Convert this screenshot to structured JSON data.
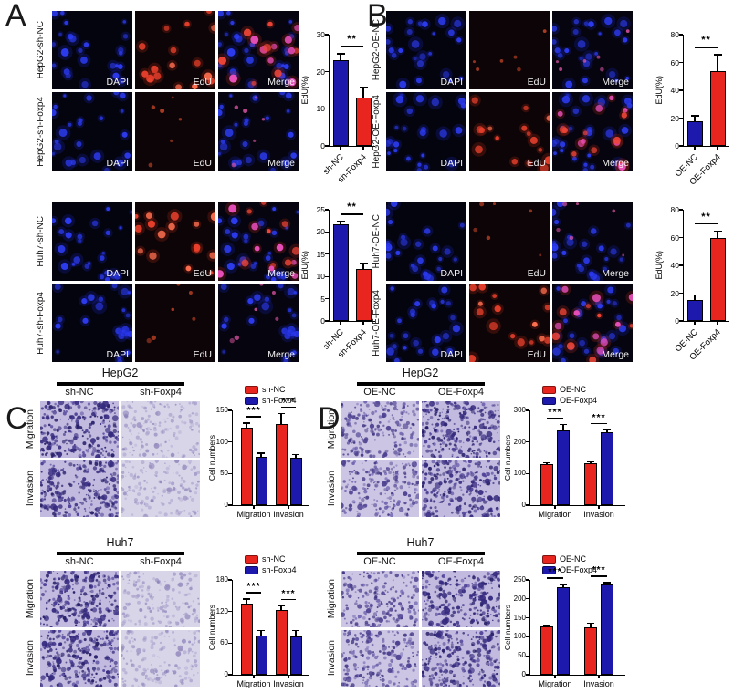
{
  "colors": {
    "navy": "#1c19ac",
    "red": "#e8251f"
  },
  "panels": {
    "A": {
      "letter": "A",
      "channel_labels": [
        "DAPI",
        "EdU",
        "Merge"
      ],
      "rows": [
        {
          "label": "HepG2-sh-NC",
          "edu_signal": "high"
        },
        {
          "label": "HepG2-sh-Foxp4",
          "edu_signal": "low"
        },
        {
          "label": "Huh7-sh-NC",
          "edu_signal": "high"
        },
        {
          "label": "Huh7-sh-Foxp4",
          "edu_signal": "low"
        }
      ]
    },
    "B": {
      "letter": "B",
      "channel_labels": [
        "DAPI",
        "EdU",
        "Merge"
      ],
      "rows": [
        {
          "label": "HepG2-OE-NC",
          "edu_signal": "low"
        },
        {
          "label": "HepG2-OE-Foxp4",
          "edu_signal": "high"
        },
        {
          "label": "Huh7-OE-NC",
          "edu_signal": "low"
        },
        {
          "label": "Huh7-OE-Foxp4",
          "edu_signal": "high"
        }
      ]
    },
    "C": {
      "letter": "C",
      "groups": [
        {
          "title": "HepG2",
          "col_labels": [
            "sh-NC",
            "sh-Foxp4"
          ],
          "row_labels": [
            "Migration",
            "Invasion"
          ],
          "col_density": [
            "dense",
            "sparse"
          ]
        },
        {
          "title": "Huh7",
          "col_labels": [
            "sh-NC",
            "sh-Foxp4"
          ],
          "row_labels": [
            "Migration",
            "Invasion"
          ],
          "col_density": [
            "dense",
            "sparse"
          ]
        }
      ]
    },
    "D": {
      "letter": "D",
      "groups": [
        {
          "title": "HepG2",
          "col_labels": [
            "OE-NC",
            "OE-Foxp4"
          ],
          "row_labels": [
            "Migration",
            "Invasion"
          ],
          "col_density": [
            "medium",
            "dense"
          ]
        },
        {
          "title": "Huh7",
          "col_labels": [
            "OE-NC",
            "OE-Foxp4"
          ],
          "row_labels": [
            "Migration",
            "Invasion"
          ],
          "col_density": [
            "medium",
            "dense"
          ]
        }
      ]
    }
  },
  "chart_data": [
    {
      "id": "A-HepG2-EdU",
      "type": "bar",
      "cell_line": "HepG2",
      "ylabel": "EdU(%)",
      "categories": [
        "sh-NC",
        "sh-Foxp4"
      ],
      "values": [
        23,
        13
      ],
      "errors": [
        2,
        3
      ],
      "bar_colors": [
        "navy",
        "red"
      ],
      "ylim": [
        0,
        30
      ],
      "yticks": [
        0,
        10,
        20,
        30
      ],
      "significance": "**"
    },
    {
      "id": "A-Huh7-EdU",
      "type": "bar",
      "cell_line": "Huh7",
      "ylabel": "EdU(%)",
      "categories": [
        "sh-NC",
        "sh-Foxp4"
      ],
      "values": [
        21.7,
        11.7
      ],
      "errors": [
        0.8,
        1.5
      ],
      "bar_colors": [
        "navy",
        "red"
      ],
      "ylim": [
        0,
        25
      ],
      "yticks": [
        0,
        5,
        10,
        15,
        20,
        25
      ],
      "significance": "**"
    },
    {
      "id": "B-HepG2-EdU",
      "type": "bar",
      "cell_line": "HepG2",
      "ylabel": "EdU(%)",
      "categories": [
        "OE-NC",
        "OE-Foxp4"
      ],
      "values": [
        17.5,
        54
      ],
      "errors": [
        4.5,
        12
      ],
      "bar_colors": [
        "navy",
        "red"
      ],
      "ylim": [
        0,
        80
      ],
      "yticks": [
        0,
        20,
        40,
        60,
        80
      ],
      "significance": "**"
    },
    {
      "id": "B-Huh7-EdU",
      "type": "bar",
      "cell_line": "Huh7",
      "ylabel": "EdU(%)",
      "categories": [
        "OE-NC",
        "OE-Foxp4"
      ],
      "values": [
        15,
        60
      ],
      "errors": [
        4,
        5
      ],
      "bar_colors": [
        "navy",
        "red"
      ],
      "ylim": [
        0,
        80
      ],
      "yticks": [
        0,
        20,
        40,
        60,
        80
      ],
      "significance": "**"
    },
    {
      "id": "C-HepG2-transwell",
      "type": "grouped_bar",
      "cell_line": "HepG2",
      "ylabel": "Cell numbers",
      "categories": [
        "Migration",
        "Invasion"
      ],
      "series": [
        {
          "name": "sh-NC",
          "color": "red",
          "values": [
            122,
            128
          ],
          "errors": [
            9,
            18
          ]
        },
        {
          "name": "sh-Foxp4",
          "color": "navy",
          "values": [
            77,
            75
          ],
          "errors": [
            6,
            6
          ]
        }
      ],
      "ylim": [
        0,
        150
      ],
      "yticks": [
        0,
        50,
        100,
        150
      ],
      "significance": [
        "***",
        "***"
      ]
    },
    {
      "id": "C-Huh7-transwell",
      "type": "grouped_bar",
      "cell_line": "Huh7",
      "ylabel": "Cell numbers",
      "categories": [
        "Migration",
        "Invasion"
      ],
      "series": [
        {
          "name": "sh-NC",
          "color": "red",
          "values": [
            135,
            123
          ],
          "errors": [
            10,
            9
          ]
        },
        {
          "name": "sh-Foxp4",
          "color": "navy",
          "values": [
            75,
            72
          ],
          "errors": [
            10,
            13
          ]
        }
      ],
      "ylim": [
        0,
        180
      ],
      "yticks": [
        0,
        60,
        120,
        180
      ],
      "significance": [
        "***",
        "***"
      ]
    },
    {
      "id": "D-HepG2-transwell",
      "type": "grouped_bar",
      "cell_line": "HepG2",
      "ylabel": "Cell numbers",
      "categories": [
        "Migration",
        "Invasion"
      ],
      "series": [
        {
          "name": "OE-NC",
          "color": "red",
          "values": [
            130,
            133
          ],
          "errors": [
            7,
            6
          ]
        },
        {
          "name": "OE-Foxp4",
          "color": "navy",
          "values": [
            237,
            230
          ],
          "errors": [
            20,
            10
          ]
        }
      ],
      "ylim": [
        0,
        300
      ],
      "yticks": [
        0,
        100,
        200,
        300
      ],
      "significance": [
        "***",
        "***"
      ]
    },
    {
      "id": "D-Huh7-transwell",
      "type": "grouped_bar",
      "cell_line": "Huh7",
      "ylabel": "Cell numbers",
      "categories": [
        "Migration",
        "Invasion"
      ],
      "series": [
        {
          "name": "OE-NC",
          "color": "red",
          "values": [
            128,
            124
          ],
          "errors": [
            5,
            14
          ]
        },
        {
          "name": "OE-Foxp4",
          "color": "navy",
          "values": [
            230,
            237
          ],
          "errors": [
            10,
            7
          ]
        }
      ],
      "ylim": [
        0,
        250
      ],
      "yticks": [
        0,
        50,
        100,
        150,
        200,
        250
      ],
      "significance": [
        "***",
        "***"
      ]
    }
  ]
}
